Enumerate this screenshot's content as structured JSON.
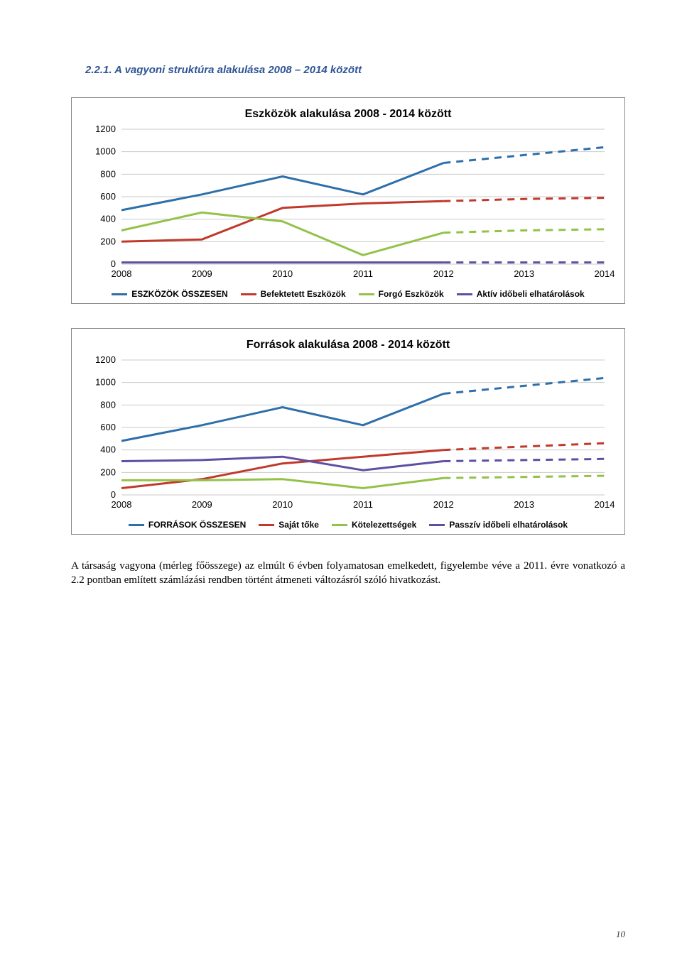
{
  "section_title": "2.2.1. A vagyoni struktúra alakulása 2008 – 2014 között",
  "chart1": {
    "type": "line",
    "title": "Eszközök alakulása 2008 - 2014 között",
    "title_fontsize": 16,
    "title_weight": "bold",
    "background_color": "#ffffff",
    "grid_color": "#c9c9c9",
    "categories": [
      "2008",
      "2009",
      "2010",
      "2011",
      "2012",
      "2013",
      "2014"
    ],
    "ylim": [
      0,
      1200
    ],
    "ytick_step": 200,
    "yticks": [
      "0",
      "200",
      "400",
      "600",
      "800",
      "1000",
      "1200"
    ],
    "label_fontsize": 13,
    "series": [
      {
        "name": "ESZKÖZÖK ÖSSZESEN",
        "color": "#2e6faa",
        "dashed": false,
        "width": 3,
        "values": [
          480,
          620,
          780,
          620,
          900,
          970,
          1040
        ]
      },
      {
        "name": "Befektetett Eszközök",
        "color": "#c0392b",
        "dashed": false,
        "width": 3,
        "values": [
          200,
          220,
          500,
          540,
          560,
          580,
          590
        ]
      },
      {
        "name": "Forgó Eszközök",
        "color": "#93c249",
        "dashed": false,
        "width": 3,
        "values": [
          300,
          460,
          380,
          80,
          280,
          300,
          310
        ]
      },
      {
        "name": "Aktív időbeli elhatárolások",
        "color": "#5e4fa2",
        "dashed": false,
        "width": 3,
        "values": [
          15,
          15,
          15,
          15,
          15,
          15,
          15
        ]
      }
    ],
    "projected_from_index": 4,
    "line_width": 3
  },
  "chart2": {
    "type": "line",
    "title": "Források alakulása 2008 - 2014 között",
    "title_fontsize": 16,
    "title_weight": "bold",
    "background_color": "#ffffff",
    "grid_color": "#c9c9c9",
    "categories": [
      "2008",
      "2009",
      "2010",
      "2011",
      "2012",
      "2013",
      "2014"
    ],
    "ylim": [
      0,
      1200
    ],
    "ytick_step": 200,
    "yticks": [
      "0",
      "200",
      "400",
      "600",
      "800",
      "1000",
      "1200"
    ],
    "label_fontsize": 13,
    "series": [
      {
        "name": "FORRÁSOK ÖSSZESEN",
        "color": "#2e6faa",
        "dashed": false,
        "width": 3,
        "values": [
          480,
          620,
          780,
          620,
          900,
          970,
          1040
        ]
      },
      {
        "name": "Saját tőke",
        "color": "#c0392b",
        "dashed": false,
        "width": 3,
        "values": [
          60,
          140,
          280,
          340,
          400,
          430,
          460
        ]
      },
      {
        "name": "Kötelezettségek",
        "color": "#93c249",
        "dashed": false,
        "width": 3,
        "values": [
          130,
          130,
          140,
          60,
          150,
          160,
          170
        ]
      },
      {
        "name": "Passzív időbeli elhatárolások",
        "color": "#5e4fa2",
        "dashed": false,
        "width": 3,
        "values": [
          300,
          310,
          340,
          220,
          300,
          310,
          320
        ]
      }
    ],
    "projected_from_index": 4,
    "line_width": 3
  },
  "body_text": "A társaság vagyona (mérleg főösszege) az elmúlt 6 évben folyamatosan emelkedett, figyelembe véve a 2011. évre vonatkozó a 2.2 pontban említett számlázási rendben történt átmeneti változásról szóló hivatkozást.",
  "page_number": "10"
}
